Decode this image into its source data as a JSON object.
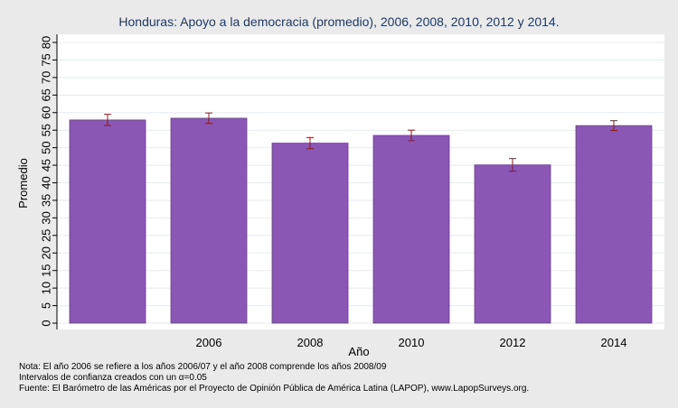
{
  "chart_data": {
    "type": "bar",
    "title": "Honduras: Apoyo a la democracia (promedio), 2006, 2008, 2010, 2012 y 2014.",
    "xlabel": "Año",
    "ylabel": "Promedio",
    "ylim": [
      0,
      80
    ],
    "ytick_step": 5,
    "categories": [
      "",
      "2006",
      "2008",
      "2010",
      "2012",
      "2014"
    ],
    "values": [
      57.9,
      58.4,
      51.3,
      53.5,
      45.1,
      56.3
    ],
    "ci_low": [
      56.3,
      56.9,
      49.7,
      52.0,
      43.3,
      54.9
    ],
    "ci_high": [
      59.5,
      59.9,
      52.9,
      55.0,
      46.9,
      57.7
    ],
    "bar_color": "#8b57b5",
    "error_bar_color": "#8b1a1a",
    "grid": true,
    "legend": "none"
  },
  "notes": {
    "line1": "Nota: El año 2006 se refiere a los años 2006/07 y el año 2008 comprende los años 2008/09",
    "line2": "Intervalos de confianza creados con un α=0.05",
    "line3": "Fuente: El Barómetro de las Américas por el Proyecto de Opinión Pública de América Latina (LAPOP), www.LapopSurveys.org."
  }
}
